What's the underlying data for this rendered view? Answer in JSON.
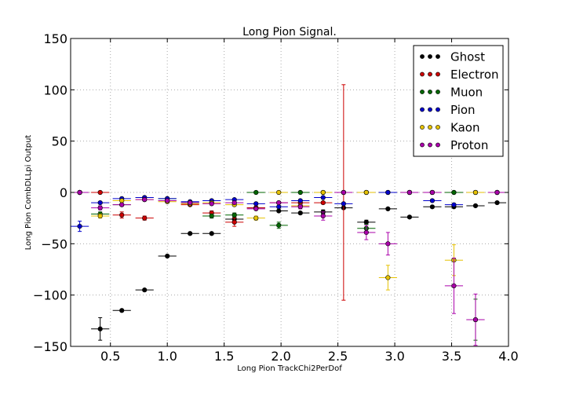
{
  "chart_data": {
    "type": "scatter",
    "title": "Long Pion Signal.",
    "xlabel": "Long Pion TrackChi2PerDof",
    "ylabel": "Long Pion CombDLLpi Output",
    "xlim": [
      0.15,
      4.0
    ],
    "ylim": [
      -150,
      150
    ],
    "xticks": [
      "0.5",
      "1.0",
      "1.5",
      "2.0",
      "2.5",
      "3.0",
      "3.5",
      "4.0"
    ],
    "xtick_values": [
      0.5,
      1.0,
      1.5,
      2.0,
      2.5,
      3.0,
      3.5,
      4.0
    ],
    "yticks": [
      "150",
      "100",
      "50",
      "0",
      "−50",
      "−100",
      "−150"
    ],
    "ytick_values": [
      150,
      100,
      50,
      0,
      -50,
      -100,
      -150
    ],
    "grid": true,
    "legend_position": "top-right",
    "bin_half_width": 0.08,
    "series": [
      {
        "name": "Ghost",
        "color": "#000000",
        "x": [
          0.23,
          0.41,
          0.6,
          0.8,
          1.0,
          1.2,
          1.39,
          1.59,
          1.78,
          1.98,
          2.17,
          2.37,
          2.55,
          2.75,
          2.94,
          3.13,
          3.33,
          3.52,
          3.71,
          3.9
        ],
        "y": [
          0,
          -133,
          -115,
          -95,
          -62,
          -40,
          -40,
          -26,
          -15,
          -18,
          -20,
          -19,
          -15,
          -29,
          -16,
          -24,
          -14,
          -14,
          -13,
          -10
        ],
        "yerr": [
          1,
          11,
          1,
          1,
          1,
          1,
          1,
          2,
          1,
          1,
          1,
          2,
          1,
          2,
          1,
          1,
          1,
          1,
          1,
          1
        ]
      },
      {
        "name": "Electron",
        "color": "#cc0000",
        "x": [
          0.23,
          0.41,
          0.6,
          0.8,
          1.0,
          1.2,
          1.39,
          1.59,
          1.78,
          1.98,
          2.17,
          2.37,
          2.55,
          2.75,
          2.94,
          3.13,
          3.33,
          3.52,
          3.71,
          3.9
        ],
        "y": [
          0,
          0,
          -22,
          -25,
          -8,
          -12,
          -20,
          -29,
          -15,
          -10,
          -10,
          -10,
          0,
          0,
          0,
          0,
          0,
          0,
          0,
          0
        ],
        "yerr": [
          1,
          1,
          3,
          2,
          1,
          1,
          2,
          4,
          1,
          1,
          1,
          1,
          105,
          1,
          1,
          1,
          1,
          1,
          1,
          1
        ]
      },
      {
        "name": "Muon",
        "color": "#006600",
        "x": [
          0.23,
          0.41,
          0.6,
          0.8,
          1.0,
          1.2,
          1.39,
          1.59,
          1.78,
          1.98,
          2.17,
          2.37,
          2.55,
          2.75,
          2.94,
          3.13,
          3.33,
          3.52,
          3.71,
          3.9
        ],
        "y": [
          0,
          -21,
          -12,
          -5,
          -6,
          -10,
          -23,
          -22,
          0,
          -32,
          0,
          0,
          0,
          -35,
          0,
          0,
          0,
          0,
          -124,
          0
        ],
        "yerr": [
          1,
          2,
          1,
          1,
          1,
          1,
          2,
          2,
          1,
          3,
          1,
          1,
          1,
          4,
          1,
          1,
          1,
          1,
          20,
          1
        ]
      },
      {
        "name": "Pion",
        "color": "#0000cc",
        "x": [
          0.23,
          0.41,
          0.6,
          0.8,
          1.0,
          1.2,
          1.39,
          1.59,
          1.78,
          1.98,
          2.17,
          2.37,
          2.55,
          2.75,
          2.94,
          3.13,
          3.33,
          3.52,
          3.71,
          3.9
        ],
        "y": [
          -33,
          -10,
          -6,
          -5,
          -6,
          -9,
          -8,
          -7,
          -11,
          -14,
          -8,
          -5,
          -11,
          0,
          0,
          0,
          -8,
          -12,
          0,
          0
        ],
        "yerr": [
          5,
          1,
          1,
          1,
          1,
          1,
          1,
          1,
          1,
          1,
          1,
          1,
          1,
          1,
          1,
          1,
          1,
          1,
          1,
          1
        ]
      },
      {
        "name": "Kaon",
        "color": "#e6c200",
        "x": [
          0.23,
          0.41,
          0.6,
          0.8,
          1.0,
          1.2,
          1.39,
          1.59,
          1.78,
          1.98,
          2.17,
          2.37,
          2.55,
          2.75,
          2.94,
          3.13,
          3.33,
          3.52,
          3.71,
          3.9
        ],
        "y": [
          0,
          -23,
          -8,
          -7,
          -9,
          -11,
          -10,
          -12,
          -25,
          0,
          -13,
          0,
          0,
          0,
          -83,
          0,
          0,
          -66,
          0,
          0
        ],
        "yerr": [
          1,
          2,
          1,
          1,
          1,
          1,
          1,
          1,
          2,
          1,
          1,
          1,
          1,
          1,
          12,
          1,
          1,
          15,
          1,
          1
        ]
      },
      {
        "name": "Proton",
        "color": "#aa00aa",
        "x": [
          0.23,
          0.41,
          0.6,
          0.8,
          1.0,
          1.2,
          1.39,
          1.59,
          1.78,
          1.98,
          2.17,
          2.37,
          2.55,
          2.75,
          2.94,
          3.13,
          3.33,
          3.52,
          3.71,
          3.9
        ],
        "y": [
          0,
          -15,
          -12,
          -7,
          -8,
          -10,
          -11,
          -10,
          -16,
          -10,
          -14,
          -23,
          0,
          -39,
          -50,
          0,
          0,
          -91,
          -124,
          0
        ],
        "yerr": [
          1,
          2,
          1,
          1,
          1,
          1,
          1,
          1,
          1,
          1,
          2,
          4,
          1,
          7,
          11,
          1,
          1,
          27,
          25,
          1
        ]
      }
    ]
  }
}
